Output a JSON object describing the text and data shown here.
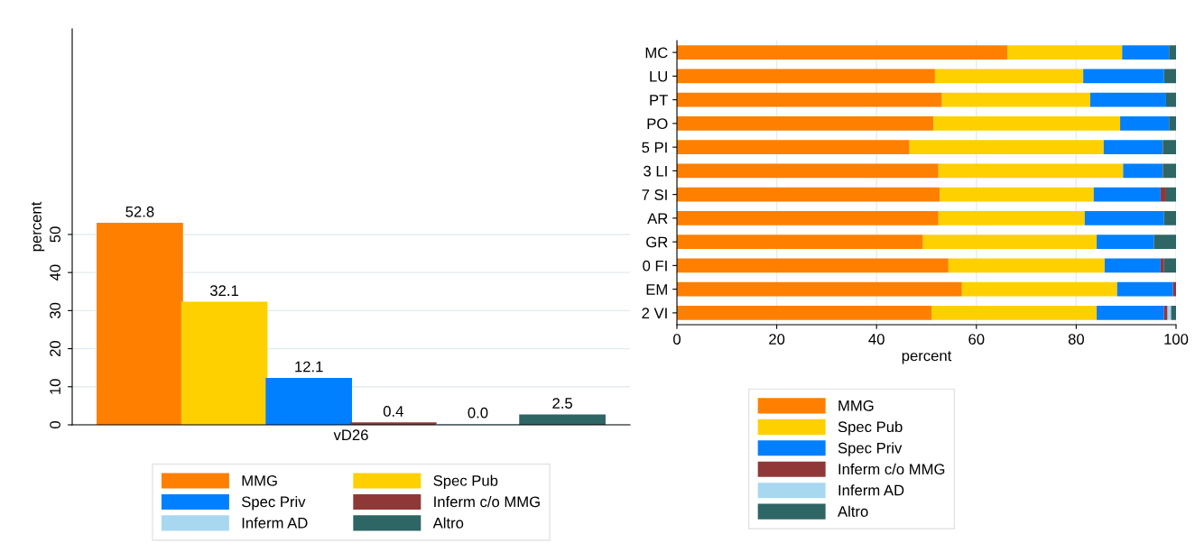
{
  "chart_data": [
    {
      "type": "bar",
      "categories": [
        "vD26"
      ],
      "ylabel": "percent",
      "ylim": [
        0,
        104
      ],
      "yticks": [
        0,
        10,
        20,
        30,
        40,
        50
      ],
      "grid": "y",
      "legend": "bottom",
      "data_labels": true,
      "series": [
        {
          "name": "MMG",
          "color": "#ff7f00",
          "values": [
            52.8
          ],
          "value_labels": [
            "52.8"
          ]
        },
        {
          "name": "Spec Pub",
          "color": "#ffd000",
          "values": [
            32.1
          ],
          "value_labels": [
            "32.1"
          ]
        },
        {
          "name": "Spec Priv",
          "color": "#0080ff",
          "values": [
            12.1
          ],
          "value_labels": [
            "12.1"
          ]
        },
        {
          "name": "Inferm c/o MMG",
          "color": "#903838",
          "values": [
            0.4
          ],
          "value_labels": [
            "0.4"
          ]
        },
        {
          "name": "Inferm AD",
          "color": "#a8d8f0",
          "values": [
            0.0
          ],
          "value_labels": [
            "0.0"
          ]
        },
        {
          "name": "Altro",
          "color": "#2e6565",
          "values": [
            2.5
          ],
          "value_labels": [
            "2.5"
          ]
        }
      ]
    },
    {
      "type": "bar",
      "orientation": "horizontal",
      "stacked": true,
      "xlabel": "percent",
      "xlim": [
        0,
        100
      ],
      "xticks": [
        0,
        20,
        40,
        60,
        80,
        100
      ],
      "grid": "x",
      "legend": "bottom",
      "categories": [
        "MC",
        "LU",
        "PT",
        "PO",
        "5 PI",
        "3 LI",
        "7 SI",
        "AR",
        "GR",
        "0 FI",
        "EM",
        "2 VI"
      ],
      "series": [
        {
          "name": "MMG",
          "color": "#ff7f00",
          "values": [
            66.2,
            51.7,
            53.1,
            51.4,
            46.6,
            52.4,
            52.7,
            52.4,
            49.3,
            54.4,
            57.1,
            51.0
          ]
        },
        {
          "name": "Spec Pub",
          "color": "#ffd000",
          "values": [
            23.0,
            29.7,
            29.7,
            37.4,
            38.9,
            37.0,
            30.8,
            29.3,
            34.8,
            31.3,
            31.1,
            33.1
          ]
        },
        {
          "name": "Spec Priv",
          "color": "#0080ff",
          "values": [
            9.4,
            16.2,
            15.2,
            9.8,
            11.8,
            7.9,
            13.4,
            15.9,
            11.5,
            11.2,
            11.2,
            13.5
          ]
        },
        {
          "name": "Inferm c/o MMG",
          "color": "#903838",
          "values": [
            0,
            0,
            0,
            0,
            0.1,
            0.1,
            1.1,
            0,
            0,
            0.7,
            0.6,
            0.7
          ]
        },
        {
          "name": "Inferm AD",
          "color": "#a8d8f0",
          "values": [
            0,
            0,
            0,
            0,
            0,
            0,
            0,
            0,
            0,
            0,
            0,
            0.7
          ]
        },
        {
          "name": "Altro",
          "color": "#2e6565",
          "values": [
            1.4,
            2.4,
            2.0,
            1.4,
            2.6,
            2.6,
            2.0,
            2.4,
            4.4,
            2.4,
            0,
            1.0
          ]
        }
      ]
    }
  ]
}
